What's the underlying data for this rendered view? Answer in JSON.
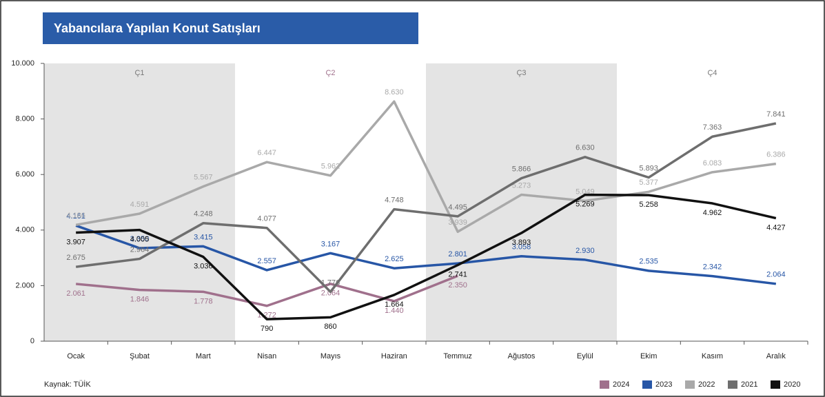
{
  "chart_data": {
    "type": "line",
    "title": "Yabancılara Yapılan Konut Satışları",
    "source": "Kaynak: TÜİK",
    "quarters": [
      "Ç1",
      "Ç2",
      "Ç3",
      "Ç4"
    ],
    "categories": [
      "Ocak",
      "Şubat",
      "Mart",
      "Nisan",
      "Mayıs",
      "Haziran",
      "Temmuz",
      "Ağustos",
      "Eylül",
      "Ekim",
      "Kasım",
      "Aralık"
    ],
    "ylim": [
      0,
      10000
    ],
    "yticks": [
      0,
      {
        "value": 2000,
        "label": "2.000"
      },
      {
        "value": 4000,
        "label": "4.000"
      },
      {
        "value": 6000,
        "label": "6.000"
      },
      {
        "value": 8000,
        "label": "8.000"
      },
      {
        "value": 10000,
        "label": "10.000"
      }
    ],
    "grid": false,
    "legend": "bottom-right",
    "series": [
      {
        "name": "2024",
        "color": "#a0708c",
        "values": [
          2061,
          1846,
          1778,
          1272,
          2064,
          1440,
          2350,
          null,
          null,
          null,
          null,
          null
        ],
        "value_labels": [
          "2.061",
          "1.846",
          "1.778",
          "1.272",
          "2.064",
          "1.440",
          "2.350",
          null,
          null,
          null,
          null,
          null
        ]
      },
      {
        "name": "2023",
        "color": "#2756a6",
        "values": [
          4161,
          3350,
          3415,
          2557,
          3167,
          2625,
          2801,
          3058,
          2930,
          2535,
          2342,
          2064
        ],
        "value_labels": [
          "4.161",
          "3.350",
          "3.415",
          "2.557",
          "3.167",
          "2.625",
          "2.801",
          "3.058",
          "2.930",
          "2.535",
          "2.342",
          "2.064"
        ]
      },
      {
        "name": "2022",
        "color": "#a9a9a9",
        "values": [
          4186,
          4591,
          5567,
          6447,
          5962,
          8630,
          3939,
          5273,
          5049,
          5377,
          6083,
          6386
        ],
        "value_labels": [
          "4.186",
          "4.591",
          "5.567",
          "6.447",
          "5.962",
          "8.630",
          "3.939",
          "5.273",
          "5.049",
          "5.377",
          "6.083",
          "6.386"
        ]
      },
      {
        "name": "2021",
        "color": "#6e6e6e",
        "values": [
          2675,
          2964,
          4248,
          4077,
          1776,
          4748,
          4495,
          5866,
          6630,
          5893,
          7363,
          7841
        ],
        "value_labels": [
          "2.675",
          "2.964",
          "4.248",
          "4.077",
          "1.776",
          "4.748",
          "4.495",
          "5.866",
          "6.630",
          "5.893",
          "7.363",
          "7.841"
        ]
      },
      {
        "name": "2020",
        "color": "#111111",
        "values": [
          3907,
          4005,
          3036,
          790,
          860,
          1664,
          2741,
          3893,
          5269,
          5258,
          4962,
          4427
        ],
        "value_labels": [
          "3.907",
          "4.005",
          "3.036",
          "790",
          "860",
          "1.664",
          "2.741",
          "3.893",
          "5.269",
          "5.258",
          "4.962",
          "4.427"
        ]
      }
    ]
  }
}
